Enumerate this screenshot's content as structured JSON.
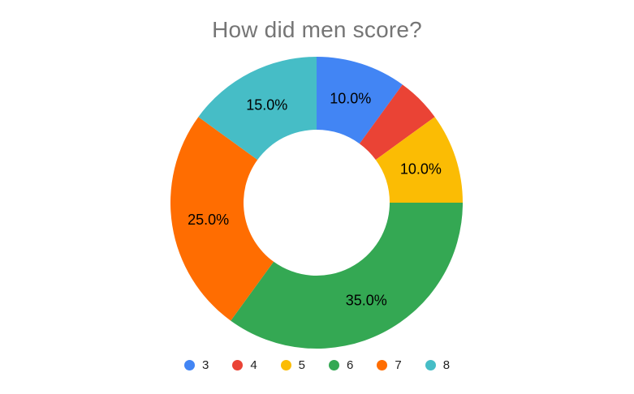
{
  "chart_data": {
    "type": "pie",
    "subtype": "donut",
    "title": "How did men score?",
    "title_color": "#757575",
    "label_color": "#000000",
    "background_color": "#ffffff",
    "pie_hole": 0.5,
    "legend_position": "bottom",
    "categories": [
      "3",
      "4",
      "5",
      "6",
      "7",
      "8"
    ],
    "values": [
      10,
      5,
      10,
      35,
      25,
      15
    ],
    "slice_labels": [
      "10.0%",
      "",
      "10.0%",
      "35.0%",
      "25.0%",
      "15.0%"
    ],
    "colors": [
      "#4285F4",
      "#EA4335",
      "#FBBC04",
      "#34A853",
      "#FF6D01",
      "#46BDC6"
    ],
    "start_position": "top",
    "direction": "clockwise"
  },
  "legend": {
    "items": [
      {
        "label": "3",
        "color": "#4285F4"
      },
      {
        "label": "4",
        "color": "#EA4335"
      },
      {
        "label": "5",
        "color": "#FBBC04"
      },
      {
        "label": "6",
        "color": "#34A853"
      },
      {
        "label": "7",
        "color": "#FF6D01"
      },
      {
        "label": "8",
        "color": "#46BDC6"
      }
    ]
  }
}
